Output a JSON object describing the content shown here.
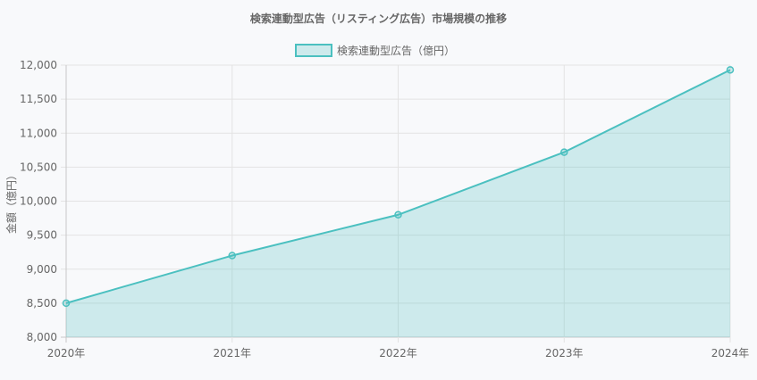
{
  "chart_data": {
    "type": "area",
    "title": "検索連動型広告（リスティング広告）市場規模の推移",
    "xlabel": "",
    "ylabel": "金額（億円）",
    "categories": [
      "2020年",
      "2021年",
      "2022年",
      "2023年",
      "2024年"
    ],
    "series": [
      {
        "name": "検索連動型広告（億円）",
        "values": [
          8500,
          9200,
          9800,
          10720,
          11930
        ]
      }
    ],
    "ylim": [
      8000,
      12000
    ],
    "yticks": [
      8000,
      8500,
      9000,
      9500,
      10000,
      10500,
      11000,
      11500,
      12000
    ],
    "ytick_labels": [
      "8,000",
      "8,500",
      "9,000",
      "9,500",
      "10,000",
      "10,500",
      "11,000",
      "11,500",
      "12,000"
    ],
    "grid": true,
    "legend_position": "top-center",
    "colors": {
      "line": "#4bc0c0",
      "fill": "rgba(75,192,192,0.25)",
      "grid": "#e3e3e3",
      "axis": "#c8c8c8",
      "text": "#666666"
    }
  }
}
